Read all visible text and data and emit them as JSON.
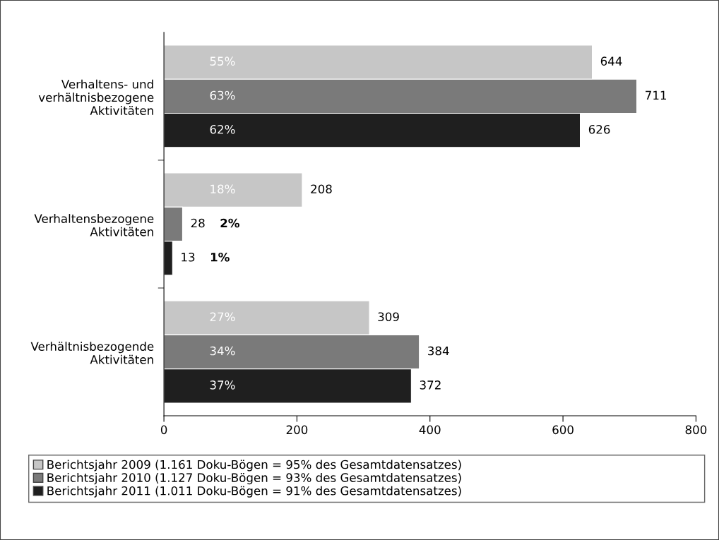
{
  "chart_data": {
    "type": "bar",
    "orientation": "horizontal",
    "categories": [
      "Verhaltens- und\nverhältnisbezogene\nAktivitäten",
      "Verhaltensbezogene\nAktivitäten",
      "Verhältnisbezogende\nAktivitäten"
    ],
    "series": [
      {
        "name": "Berichtsjahr 2009 (1.161 Doku-Bögen = 95% des Gesamtdatensatzes)",
        "color": "#c6c6c6",
        "values": [
          644,
          208,
          309
        ]
      },
      {
        "name": "Berichtsjahr 2010 (1.127 Doku-Bögen = 93% des Gesamtdatensatzes)",
        "color": "#7a7a7a",
        "values": [
          711,
          28,
          384
        ]
      },
      {
        "name": "Berichtsjahr 2011 (1.011 Doku-Bögen = 91% des Gesamtdatensatzes)",
        "color": "#1f1f1f",
        "values": [
          626,
          13,
          372
        ]
      }
    ],
    "annotations": [
      "55%",
      "18%",
      "27%",
      "63%",
      "2%",
      "34%",
      "62%",
      "1%",
      "37%"
    ],
    "xlim": [
      0,
      800
    ],
    "xticks": [
      0,
      200,
      400,
      600,
      800
    ],
    "data_labels": true,
    "grid": false,
    "legend": "bottom"
  }
}
